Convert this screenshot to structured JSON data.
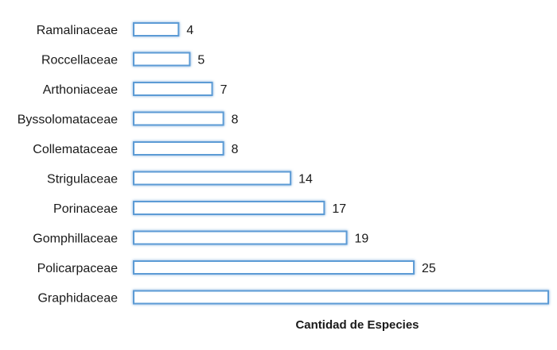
{
  "chart_data": {
    "type": "bar",
    "orientation": "horizontal",
    "categories": [
      "Ramalinaceae",
      "Roccellaceae",
      "Arthoniaceae",
      "Byssolomataceae",
      "Collemataceae",
      "Strigulaceae",
      "Porinaceae",
      "Gomphillaceae",
      "Policarpaceae",
      "Graphidaceae"
    ],
    "values": [
      4,
      5,
      7,
      8,
      8,
      14,
      17,
      19,
      25,
      37
    ],
    "value_labels": [
      "4",
      "5",
      "7",
      "8",
      "8",
      "14",
      "17",
      "19",
      "25",
      ""
    ],
    "xlabel": "Cantidad de Especies",
    "ylabel": "",
    "title": "",
    "xlim": [
      0,
      37
    ],
    "grid": false,
    "legend": "none",
    "colors": {
      "bar_fill": "#ffffff",
      "bar_stroke": "#5b9bd5",
      "bar_glow": "#9dc3e6",
      "text": "#1a1a1a"
    }
  }
}
